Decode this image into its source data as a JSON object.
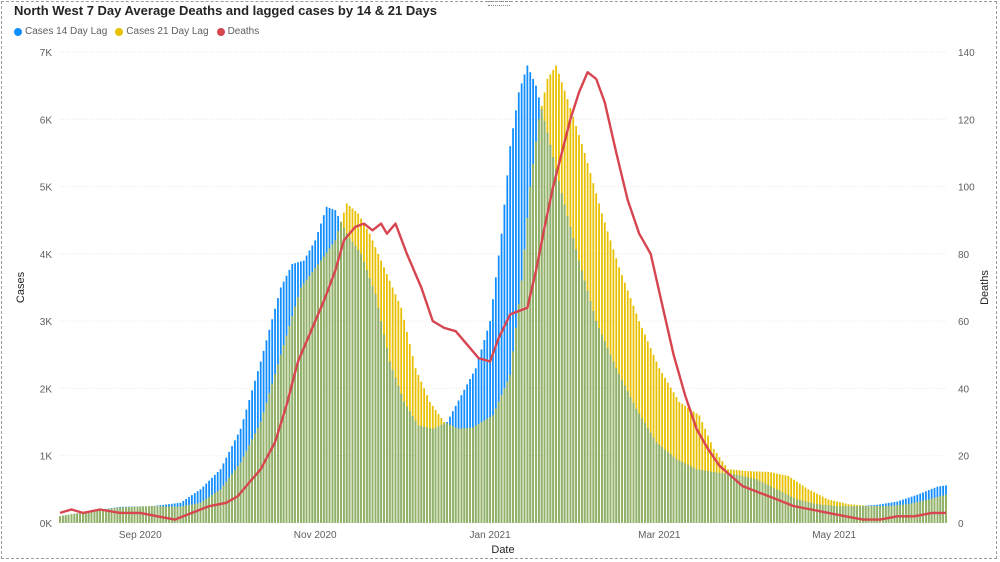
{
  "chart_data": {
    "type": "bar",
    "title": "North West 7 Day Average Deaths and lagged cases by 14 & 21 Days",
    "xlabel": "Date",
    "ylabel_left": "Cases",
    "ylabel_right": "Deaths",
    "ylim_left": [
      0,
      7000
    ],
    "ylim_right": [
      0,
      140
    ],
    "y_ticks_left": [
      "0K",
      "1K",
      "2K",
      "3K",
      "4K",
      "5K",
      "6K",
      "7K"
    ],
    "y_ticks_right": [
      "0",
      "20",
      "40",
      "60",
      "80",
      "100",
      "120",
      "140"
    ],
    "x_range": [
      "2020-08-04",
      "2021-06-09"
    ],
    "x_ticks": [
      {
        "date": "2020-09-01",
        "label": "Sep 2020"
      },
      {
        "date": "2020-11-01",
        "label": "Nov 2020"
      },
      {
        "date": "2021-01-01",
        "label": "Jan 2021"
      },
      {
        "date": "2021-03-01",
        "label": "Mar 2021"
      },
      {
        "date": "2021-05-01",
        "label": "May 2021"
      }
    ],
    "legend_position": "top-left",
    "series": [
      {
        "name": "Cases 14 Day Lag",
        "kind": "bar",
        "axis": "left",
        "color": "#118DFF",
        "points": [
          [
            "2020-08-04",
            100
          ],
          [
            "2020-08-15",
            180
          ],
          [
            "2020-08-25",
            240
          ],
          [
            "2020-09-05",
            250
          ],
          [
            "2020-09-15",
            300
          ],
          [
            "2020-09-22",
            500
          ],
          [
            "2020-09-29",
            800
          ],
          [
            "2020-10-06",
            1400
          ],
          [
            "2020-10-13",
            2400
          ],
          [
            "2020-10-20",
            3500
          ],
          [
            "2020-10-24",
            3850
          ],
          [
            "2020-10-28",
            3900
          ],
          [
            "2020-11-01",
            4200
          ],
          [
            "2020-11-05",
            4700
          ],
          [
            "2020-11-08",
            4650
          ],
          [
            "2020-11-12",
            4300
          ],
          [
            "2020-11-17",
            4000
          ],
          [
            "2020-11-22",
            3400
          ],
          [
            "2020-11-27",
            2400
          ],
          [
            "2020-12-02",
            1800
          ],
          [
            "2020-12-07",
            1450
          ],
          [
            "2020-12-12",
            1400
          ],
          [
            "2020-12-17",
            1500
          ],
          [
            "2020-12-22",
            1900
          ],
          [
            "2020-12-27",
            2300
          ],
          [
            "2021-01-01",
            3000
          ],
          [
            "2021-01-05",
            4300
          ],
          [
            "2021-01-08",
            5600
          ],
          [
            "2021-01-11",
            6400
          ],
          [
            "2021-01-14",
            6800
          ],
          [
            "2021-01-17",
            6500
          ],
          [
            "2021-01-21",
            5800
          ],
          [
            "2021-01-26",
            4900
          ],
          [
            "2021-02-01",
            3900
          ],
          [
            "2021-02-07",
            3000
          ],
          [
            "2021-02-14",
            2300
          ],
          [
            "2021-02-21",
            1700
          ],
          [
            "2021-02-28",
            1200
          ],
          [
            "2021-03-07",
            950
          ],
          [
            "2021-03-14",
            800
          ],
          [
            "2021-03-21",
            750
          ],
          [
            "2021-03-28",
            720
          ],
          [
            "2021-04-04",
            650
          ],
          [
            "2021-04-11",
            500
          ],
          [
            "2021-04-18",
            350
          ],
          [
            "2021-04-25",
            280
          ],
          [
            "2021-05-02",
            250
          ],
          [
            "2021-05-09",
            250
          ],
          [
            "2021-05-16",
            270
          ],
          [
            "2021-05-23",
            320
          ],
          [
            "2021-05-30",
            420
          ],
          [
            "2021-06-06",
            540
          ],
          [
            "2021-06-09",
            560
          ]
        ]
      },
      {
        "name": "Cases 21 Day Lag",
        "kind": "bar",
        "axis": "left",
        "color": "#E8C000",
        "points": [
          [
            "2020-08-04",
            100
          ],
          [
            "2020-08-15",
            180
          ],
          [
            "2020-08-25",
            230
          ],
          [
            "2020-09-05",
            250
          ],
          [
            "2020-09-15",
            240
          ],
          [
            "2020-09-22",
            300
          ],
          [
            "2020-09-29",
            500
          ],
          [
            "2020-10-06",
            900
          ],
          [
            "2020-10-13",
            1500
          ],
          [
            "2020-10-20",
            2500
          ],
          [
            "2020-10-27",
            3500
          ],
          [
            "2020-11-03",
            3900
          ],
          [
            "2020-11-08",
            4200
          ],
          [
            "2020-11-12",
            4750
          ],
          [
            "2020-11-16",
            4600
          ],
          [
            "2020-11-20",
            4300
          ],
          [
            "2020-11-25",
            3800
          ],
          [
            "2020-12-01",
            3200
          ],
          [
            "2020-12-06",
            2300
          ],
          [
            "2020-12-11",
            1800
          ],
          [
            "2020-12-16",
            1500
          ],
          [
            "2020-12-21",
            1400
          ],
          [
            "2020-12-26",
            1420
          ],
          [
            "2021-01-02",
            1600
          ],
          [
            "2021-01-08",
            2200
          ],
          [
            "2021-01-12",
            3600
          ],
          [
            "2021-01-15",
            5000
          ],
          [
            "2021-01-18",
            6000
          ],
          [
            "2021-01-21",
            6600
          ],
          [
            "2021-01-24",
            6800
          ],
          [
            "2021-01-28",
            6300
          ],
          [
            "2021-02-03",
            5500
          ],
          [
            "2021-02-09",
            4600
          ],
          [
            "2021-02-15",
            3800
          ],
          [
            "2021-02-22",
            3000
          ],
          [
            "2021-03-01",
            2300
          ],
          [
            "2021-03-08",
            1800
          ],
          [
            "2021-03-15",
            1600
          ],
          [
            "2021-03-20",
            1100
          ],
          [
            "2021-03-25",
            800
          ],
          [
            "2021-04-01",
            770
          ],
          [
            "2021-04-08",
            760
          ],
          [
            "2021-04-15",
            700
          ],
          [
            "2021-04-22",
            500
          ],
          [
            "2021-04-29",
            350
          ],
          [
            "2021-05-06",
            280
          ],
          [
            "2021-05-13",
            250
          ],
          [
            "2021-05-20",
            250
          ],
          [
            "2021-05-27",
            280
          ],
          [
            "2021-06-03",
            350
          ],
          [
            "2021-06-09",
            420
          ]
        ]
      },
      {
        "name": "Deaths",
        "kind": "line",
        "axis": "right",
        "color": "#D64550",
        "points": [
          [
            "2020-08-04",
            3
          ],
          [
            "2020-08-08",
            4
          ],
          [
            "2020-08-12",
            3
          ],
          [
            "2020-08-18",
            4
          ],
          [
            "2020-08-25",
            3
          ],
          [
            "2020-09-01",
            3
          ],
          [
            "2020-09-07",
            2
          ],
          [
            "2020-09-13",
            1
          ],
          [
            "2020-09-19",
            3
          ],
          [
            "2020-09-25",
            5
          ],
          [
            "2020-10-01",
            6
          ],
          [
            "2020-10-05",
            8
          ],
          [
            "2020-10-09",
            12
          ],
          [
            "2020-10-13",
            16
          ],
          [
            "2020-10-18",
            24
          ],
          [
            "2020-10-22",
            35
          ],
          [
            "2020-10-26",
            48
          ],
          [
            "2020-10-30",
            56
          ],
          [
            "2020-11-04",
            66
          ],
          [
            "2020-11-08",
            75
          ],
          [
            "2020-11-11",
            84
          ],
          [
            "2020-11-15",
            88
          ],
          [
            "2020-11-18",
            89
          ],
          [
            "2020-11-21",
            87
          ],
          [
            "2020-11-24",
            89
          ],
          [
            "2020-11-26",
            86
          ],
          [
            "2020-11-29",
            89
          ],
          [
            "2020-12-03",
            80
          ],
          [
            "2020-12-08",
            70
          ],
          [
            "2020-12-12",
            60
          ],
          [
            "2020-12-16",
            58
          ],
          [
            "2020-12-20",
            57
          ],
          [
            "2020-12-24",
            53
          ],
          [
            "2020-12-28",
            49
          ],
          [
            "2021-01-01",
            48
          ],
          [
            "2021-01-04",
            55
          ],
          [
            "2021-01-08",
            62
          ],
          [
            "2021-01-11",
            63
          ],
          [
            "2021-01-14",
            64
          ],
          [
            "2021-01-17",
            75
          ],
          [
            "2021-01-20",
            88
          ],
          [
            "2021-01-23",
            100
          ],
          [
            "2021-01-26",
            110
          ],
          [
            "2021-01-29",
            120
          ],
          [
            "2021-02-01",
            128
          ],
          [
            "2021-02-04",
            134
          ],
          [
            "2021-02-07",
            132
          ],
          [
            "2021-02-10",
            125
          ],
          [
            "2021-02-14",
            110
          ],
          [
            "2021-02-18",
            96
          ],
          [
            "2021-02-22",
            86
          ],
          [
            "2021-02-26",
            80
          ],
          [
            "2021-03-02",
            65
          ],
          [
            "2021-03-06",
            50
          ],
          [
            "2021-03-10",
            38
          ],
          [
            "2021-03-14",
            28
          ],
          [
            "2021-03-18",
            22
          ],
          [
            "2021-03-22",
            17
          ],
          [
            "2021-03-26",
            14
          ],
          [
            "2021-03-30",
            11
          ],
          [
            "2021-04-05",
            9
          ],
          [
            "2021-04-11",
            7
          ],
          [
            "2021-04-17",
            5
          ],
          [
            "2021-04-23",
            4
          ],
          [
            "2021-04-29",
            3
          ],
          [
            "2021-05-05",
            2
          ],
          [
            "2021-05-11",
            1
          ],
          [
            "2021-05-17",
            1
          ],
          [
            "2021-05-23",
            2
          ],
          [
            "2021-05-29",
            2
          ],
          [
            "2021-06-04",
            3
          ],
          [
            "2021-06-09",
            3
          ]
        ]
      }
    ]
  }
}
